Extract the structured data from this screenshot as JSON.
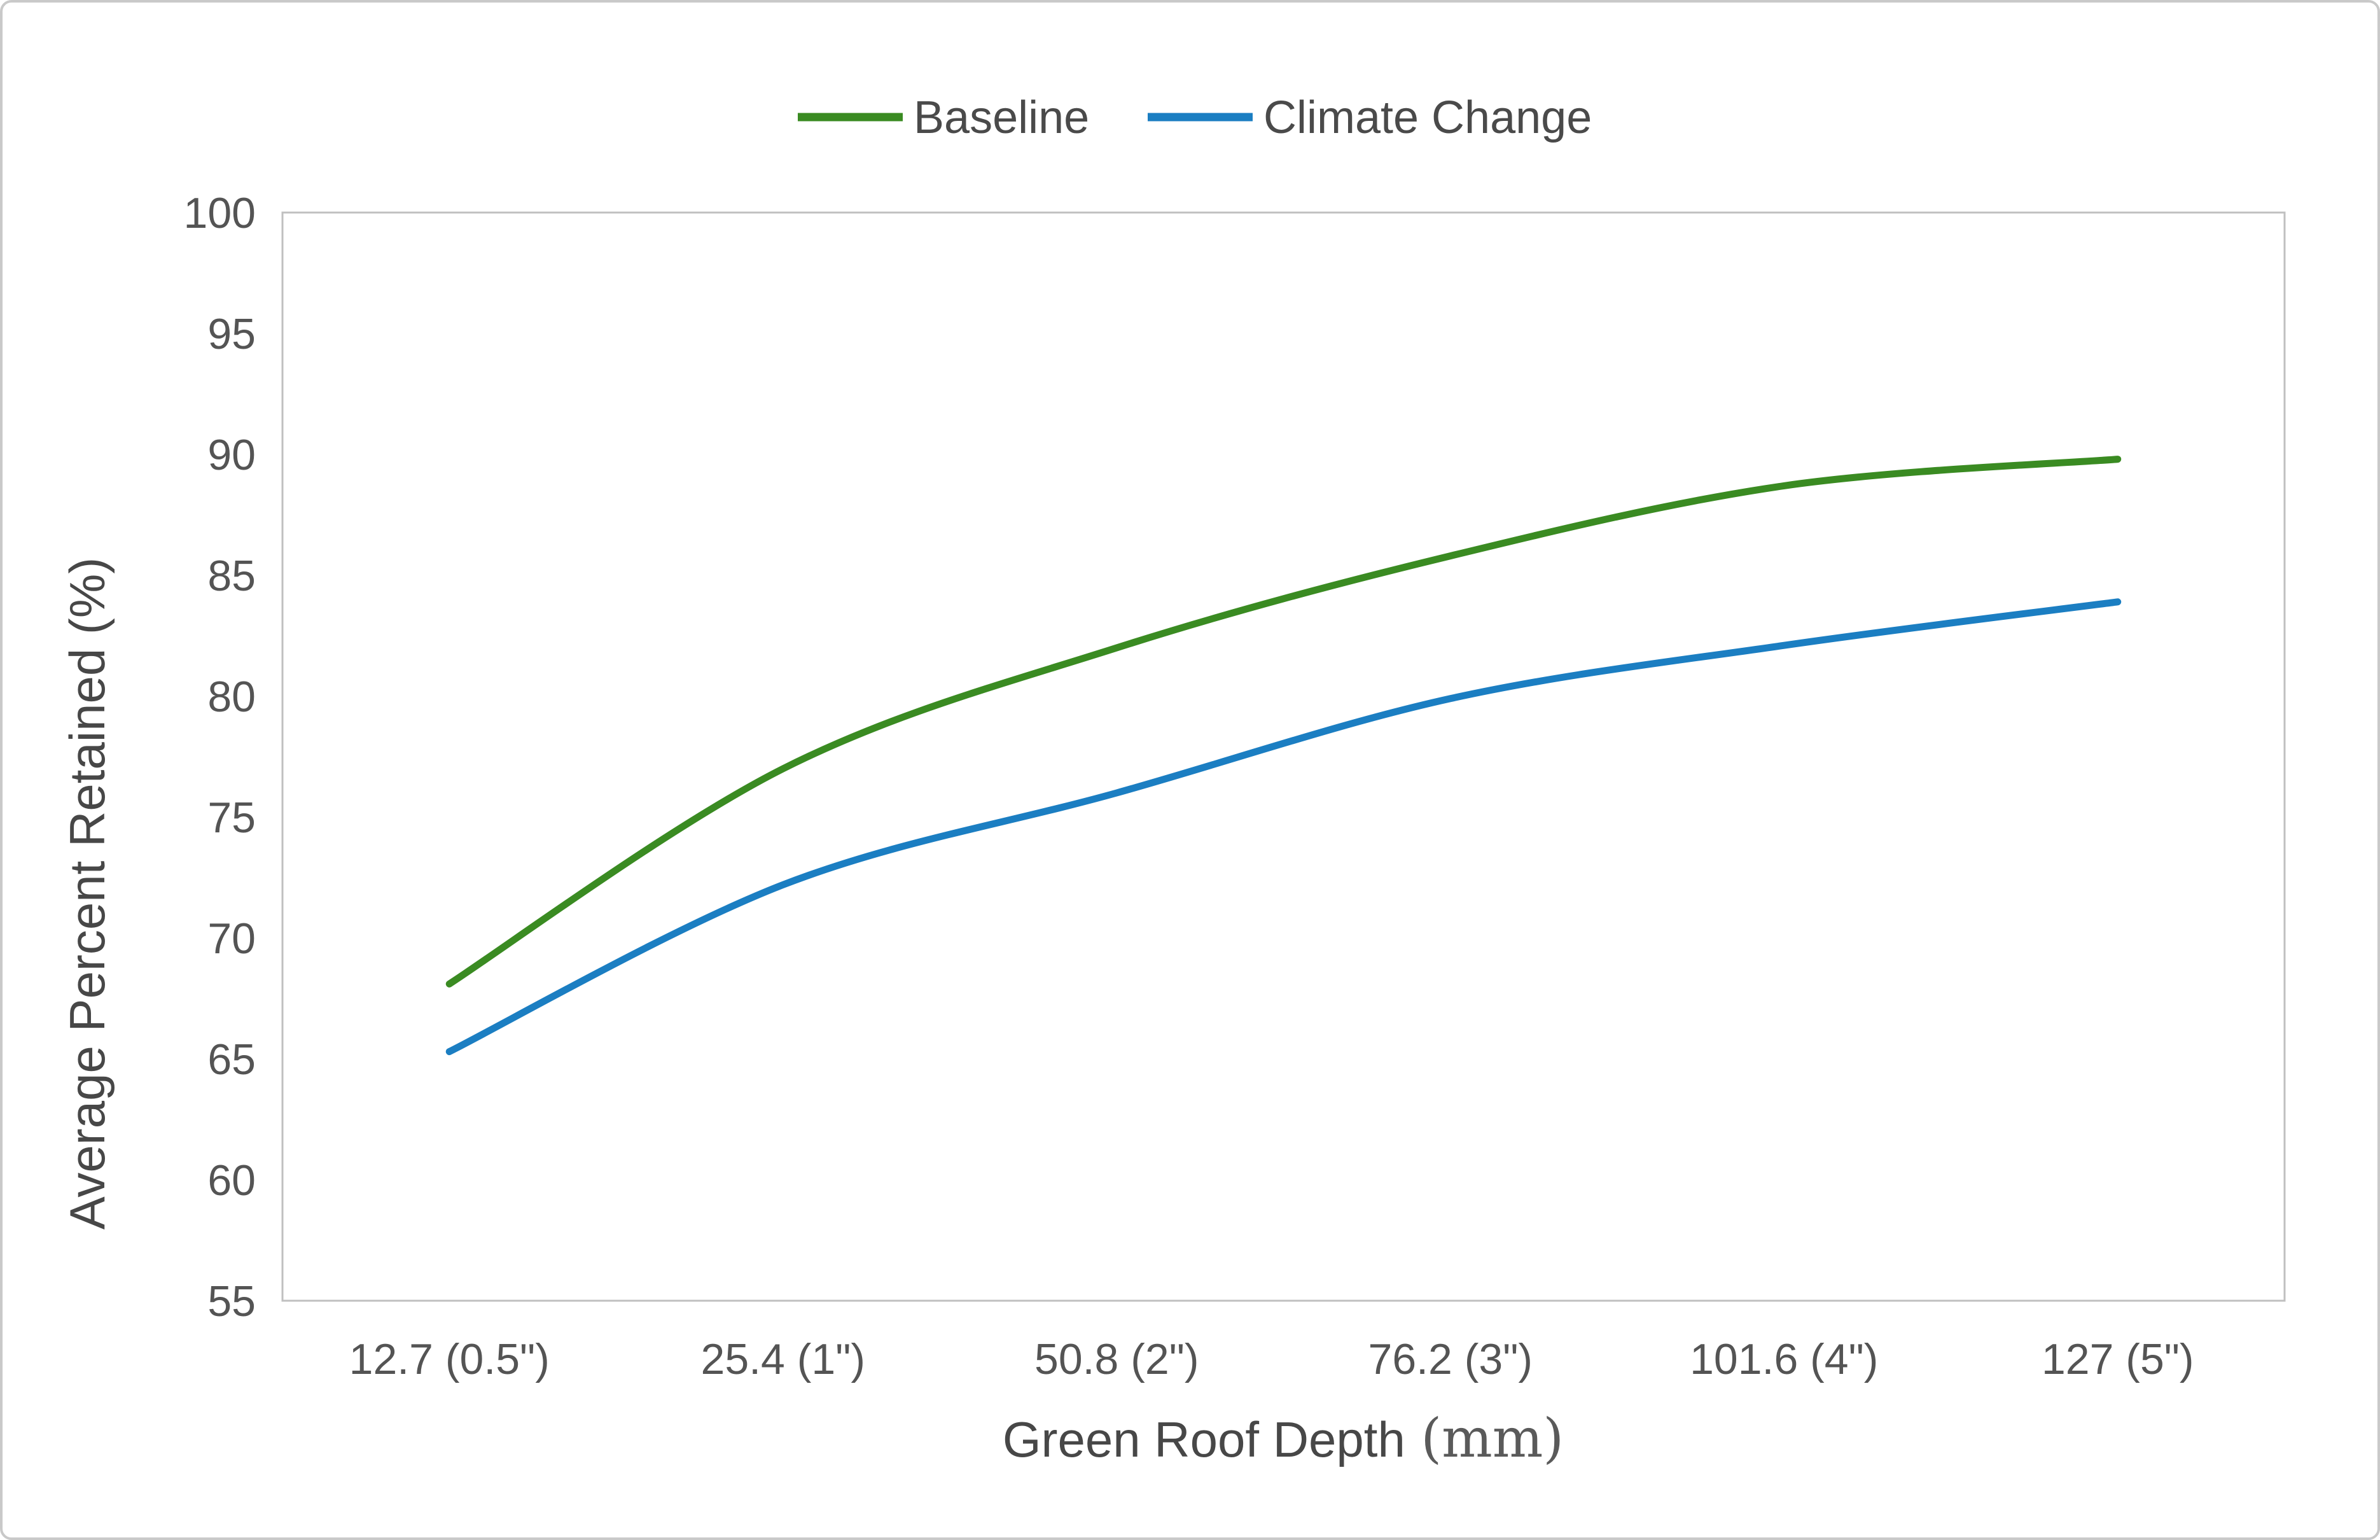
{
  "figure": {
    "background": "#ffffff",
    "frame_border_color": "#c9c9c9",
    "plot_border_color": "#c0c0c0",
    "axis_text_color": "#545454"
  },
  "legend": {
    "position": "top-center",
    "items": [
      {
        "label": "Baseline",
        "color": "#3a8b22"
      },
      {
        "label": "Climate Change",
        "color": "#1b7ec2"
      }
    ]
  },
  "chart_data": {
    "type": "line",
    "title": "",
    "smooth": true,
    "grid": false,
    "legend_position": "top",
    "categories": [
      "12.7 (0.5\")",
      "25.4 (1\")",
      "50.8 (2\")",
      "76.2 (3\")",
      "101.6 (4\")",
      "127 (5\")"
    ],
    "series": [
      {
        "name": "Baseline",
        "color": "#3a8b22",
        "values": [
          68.1,
          77.0,
          82.0,
          85.8,
          88.7,
          89.8
        ]
      },
      {
        "name": "Climate Change",
        "color": "#1b7ec2",
        "values": [
          65.3,
          72.2,
          76.0,
          79.9,
          82.1,
          83.9
        ]
      }
    ],
    "xlabel_main": "Green Roof Depth",
    "xlabel_unit": "(mm)",
    "ylabel": "Average Percent Retained (%)",
    "ylim": [
      55,
      100
    ],
    "ytick_step": 5,
    "yticks": [
      55,
      60,
      65,
      70,
      75,
      80,
      85,
      90,
      95,
      100
    ]
  }
}
